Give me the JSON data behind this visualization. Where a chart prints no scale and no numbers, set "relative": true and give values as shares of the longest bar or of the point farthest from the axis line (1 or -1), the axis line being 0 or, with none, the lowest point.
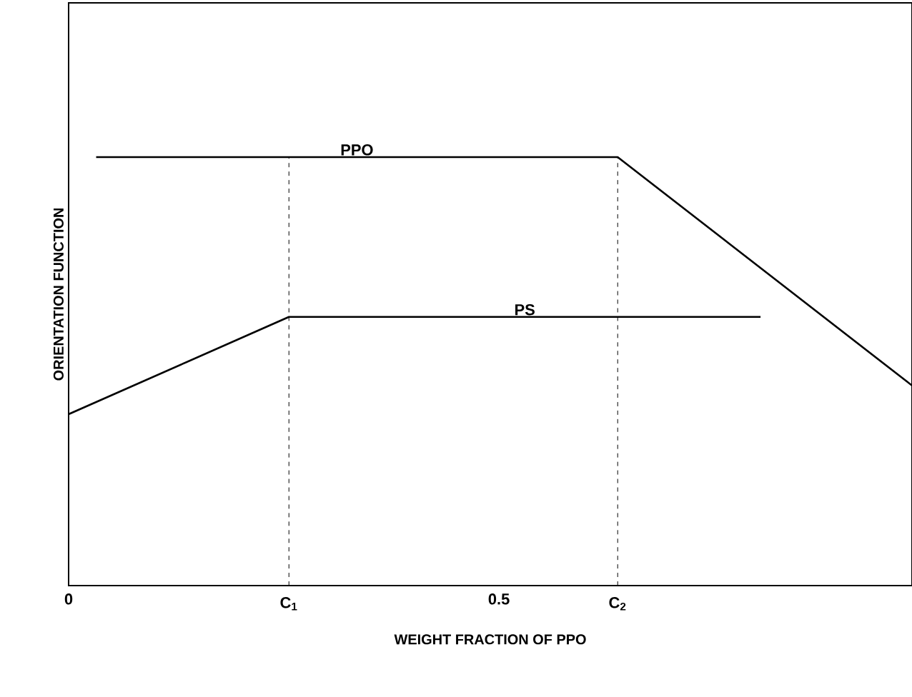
{
  "chart_data": {
    "type": "line",
    "xlabel": "WEIGHT FRACTION OF PPO",
    "ylabel": "ORIENTATION FUNCTION",
    "relative": true,
    "xlim": [
      0,
      0.98
    ],
    "xticks": [
      0,
      0.5
    ],
    "series": [
      {
        "name": "PPO",
        "color": "#000000",
        "x": [
          0.032,
          0.638,
          0.98
        ],
        "values": [
          1,
          1,
          0.467
        ]
      },
      {
        "name": "PS",
        "color": "#000000",
        "x": [
          0,
          0.256,
          0.804
        ],
        "values": [
          0.4,
          0.627,
          0.627
        ]
      }
    ],
    "ref_lines": [
      {
        "axis": "x",
        "value": 0.256,
        "label": "C$_{1}$",
        "line_style": "dashed"
      },
      {
        "axis": "x",
        "value": 0.638,
        "label": "C$_{2}$",
        "line_style": "dashed"
      }
    ],
    "grid": false,
    "legend": false,
    "marker": "none",
    "line_style": "solid"
  }
}
